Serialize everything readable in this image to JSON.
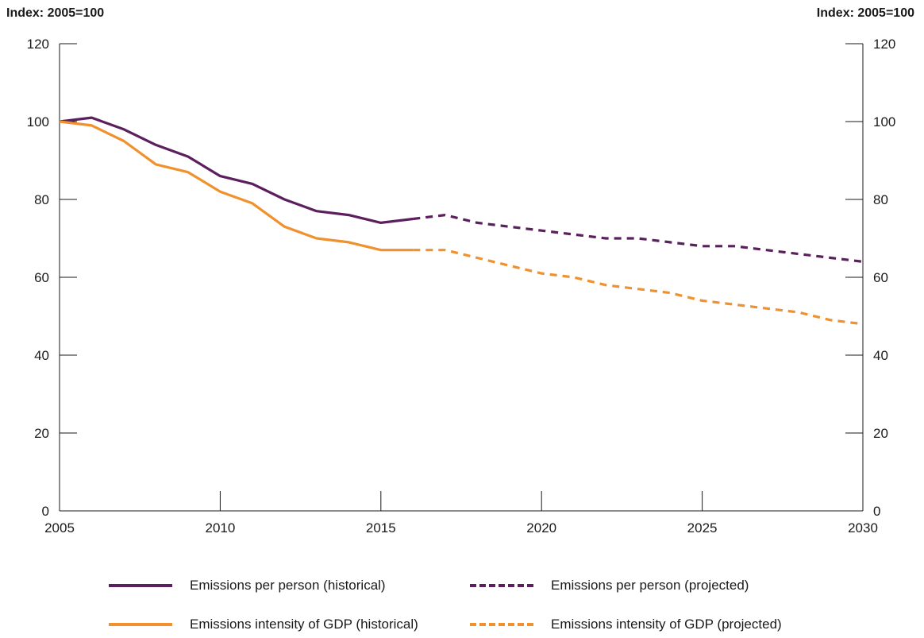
{
  "chart_data": {
    "type": "line",
    "y_unit_label_left": "Index: 2005=100",
    "y_unit_label_right": "Index: 2005=100",
    "xlim": [
      2005,
      2030
    ],
    "ylim": [
      0,
      120
    ],
    "x_ticks": [
      2005,
      2010,
      2015,
      2020,
      2025,
      2030
    ],
    "y_ticks": [
      0,
      20,
      40,
      60,
      80,
      100,
      120
    ],
    "grid": false,
    "legend_position": "bottom",
    "series": [
      {
        "name": "Emissions per person (historical)",
        "color": "#5b1f5e",
        "style": "solid",
        "x": [
          2005,
          2006,
          2007,
          2008,
          2009,
          2010,
          2011,
          2012,
          2013,
          2014,
          2015,
          2016
        ],
        "y": [
          100,
          101,
          98,
          94,
          91,
          86,
          84,
          80,
          77,
          76,
          74,
          75
        ]
      },
      {
        "name": "Emissions per person (projected)",
        "color": "#5b1f5e",
        "style": "dashed",
        "x": [
          2016,
          2017,
          2018,
          2019,
          2020,
          2021,
          2022,
          2023,
          2024,
          2025,
          2026,
          2027,
          2028,
          2029,
          2030
        ],
        "y": [
          75,
          76,
          74,
          73,
          72,
          71,
          70,
          70,
          69,
          68,
          68,
          67,
          66,
          65,
          64
        ]
      },
      {
        "name": "Emissions intensity of GDP (historical)",
        "color": "#f0912e",
        "style": "solid",
        "x": [
          2005,
          2006,
          2007,
          2008,
          2009,
          2010,
          2011,
          2012,
          2013,
          2014,
          2015,
          2016
        ],
        "y": [
          100,
          99,
          95,
          89,
          87,
          82,
          79,
          73,
          70,
          69,
          67,
          67
        ]
      },
      {
        "name": "Emissions intensity of GDP (projected)",
        "color": "#f0912e",
        "style": "dashed",
        "x": [
          2016,
          2017,
          2018,
          2019,
          2020,
          2021,
          2022,
          2023,
          2024,
          2025,
          2026,
          2027,
          2028,
          2029,
          2030
        ],
        "y": [
          67,
          67,
          65,
          63,
          61,
          60,
          58,
          57,
          56,
          54,
          53,
          52,
          51,
          49,
          48
        ]
      }
    ]
  },
  "colors": {
    "axis": "#1a1a1a",
    "purple": "#5b1f5e",
    "orange": "#f0912e"
  }
}
